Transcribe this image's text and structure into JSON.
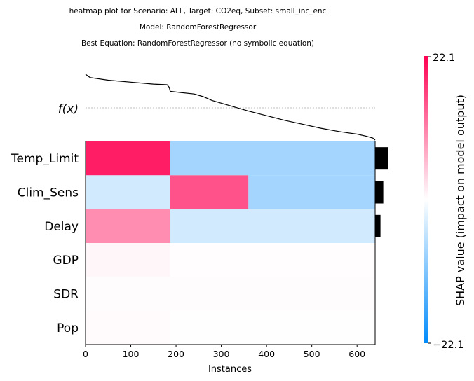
{
  "chart_data": {
    "type": "heatmap",
    "title_lines": [
      "heatmap plot for Scenario: ALL, Target: CO2eq, Subset: small_inc_enc",
      "Model: RandomForestRegressor",
      "Best Equation: RandomForestRegressor (no symbolic equation)"
    ],
    "xlabel": "Instances",
    "x_ticks": [
      "0",
      "100",
      "200",
      "300",
      "400",
      "500",
      "600"
    ],
    "x_tick_values": [
      0,
      100,
      200,
      300,
      400,
      500,
      600
    ],
    "x_range": [
      0,
      640
    ],
    "fx_label": "f(x)",
    "features": [
      "Temp_Limit",
      "Clim_Sens",
      "Delay",
      "GDP",
      "SDR",
      "Pop"
    ],
    "feature_importance": [
      0.93,
      0.58,
      0.38,
      0.0,
      0.0,
      0.0
    ],
    "colorbar": {
      "label": "SHAP value (impact on model output)",
      "max_label": "22.1",
      "min_label": "−22.1",
      "vmin": -22.1,
      "vmax": 22.1,
      "low_color": "#008bfb",
      "mid_color": "#ffffff",
      "high_color": "#ff0052"
    },
    "series": [
      {
        "feature": "Temp_Limit",
        "segments": [
          {
            "start": 0,
            "end": 187,
            "value": 19.5
          },
          {
            "start": 187,
            "end": 640,
            "value": -8
          }
        ]
      },
      {
        "feature": "Clim_Sens",
        "segments": [
          {
            "start": 0,
            "end": 187,
            "value": -4
          },
          {
            "start": 187,
            "end": 360,
            "value": 15
          },
          {
            "start": 360,
            "end": 640,
            "value": -8
          }
        ]
      },
      {
        "feature": "Delay",
        "segments": [
          {
            "start": 0,
            "end": 187,
            "value": 10
          },
          {
            "start": 187,
            "end": 640,
            "value": -4
          }
        ]
      },
      {
        "feature": "GDP",
        "segments": [
          {
            "start": 0,
            "end": 187,
            "value": 0.8
          },
          {
            "start": 187,
            "end": 640,
            "value": 0.2
          }
        ]
      },
      {
        "feature": "SDR",
        "segments": [
          {
            "start": 0,
            "end": 640,
            "value": 0.3
          }
        ]
      },
      {
        "feature": "Pop",
        "segments": [
          {
            "start": 0,
            "end": 187,
            "value": 0.4
          },
          {
            "start": 187,
            "end": 640,
            "value": 0.05
          }
        ]
      }
    ],
    "fx_curve": {
      "x": [
        0,
        10,
        50,
        100,
        150,
        180,
        185,
        187,
        200,
        240,
        260,
        280,
        320,
        360,
        400,
        440,
        480,
        520,
        560,
        600,
        620,
        635,
        640
      ],
      "y": [
        1.0,
        0.95,
        0.91,
        0.88,
        0.85,
        0.84,
        0.8,
        0.74,
        0.73,
        0.7,
        0.66,
        0.6,
        0.52,
        0.44,
        0.37,
        0.3,
        0.24,
        0.18,
        0.13,
        0.09,
        0.06,
        0.03,
        0.0
      ]
    }
  }
}
